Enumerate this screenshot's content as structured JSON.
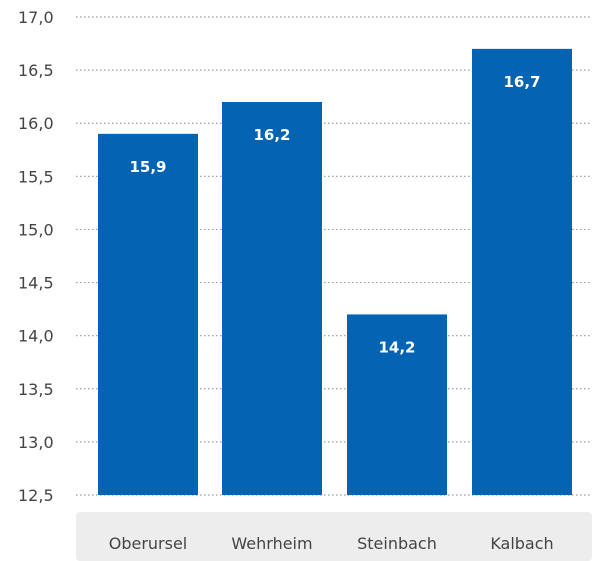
{
  "chart_data": {
    "type": "bar",
    "title": "",
    "xlabel": "",
    "ylabel": "",
    "categories": [
      "Oberursel",
      "Wehrheim",
      "Steinbach",
      "Kalbach"
    ],
    "values": [
      15.9,
      16.2,
      14.2,
      16.7
    ],
    "data_labels": [
      "15,9",
      "16,2",
      "14,2",
      "16,7"
    ],
    "ylim": [
      12.5,
      17.0
    ],
    "yticks": [
      12.5,
      13.0,
      13.5,
      14.0,
      14.5,
      15.0,
      15.5,
      16.0,
      16.5,
      17.0
    ],
    "ytick_labels": [
      "12,5",
      "13,0",
      "13,5",
      "14,0",
      "14,5",
      "15,0",
      "15,5",
      "16,0",
      "16,5",
      "17,0"
    ],
    "grid": true,
    "legend": "none",
    "bar_color": "#0563b4",
    "grid_color": "#9a9a9a",
    "category_band_color": "#ededed"
  }
}
